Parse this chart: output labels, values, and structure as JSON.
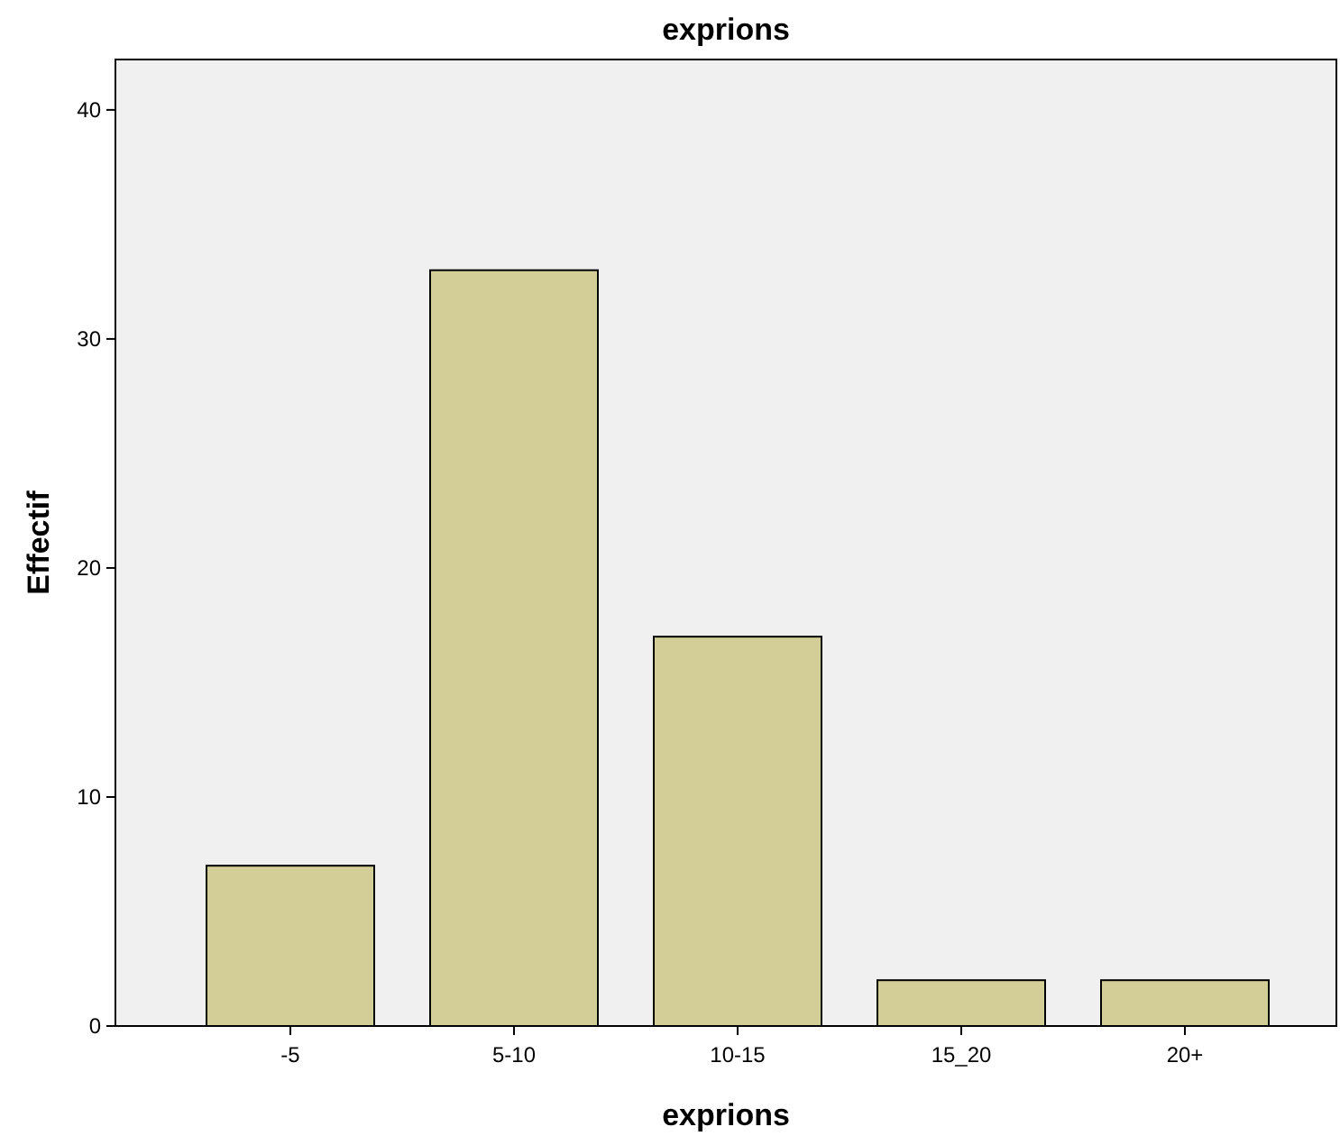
{
  "chart_data": {
    "type": "bar",
    "title": "exprions",
    "xlabel": "exprions",
    "ylabel": "Effectif",
    "categories": [
      "-5",
      "5-10",
      "10-15",
      "15_20",
      "20+"
    ],
    "values": [
      7,
      33,
      17,
      2,
      2
    ],
    "color": "#d3ce97",
    "ylim": [
      0,
      42.2
    ],
    "yticks": [
      0,
      10,
      20,
      30,
      40
    ],
    "grid": false
  }
}
